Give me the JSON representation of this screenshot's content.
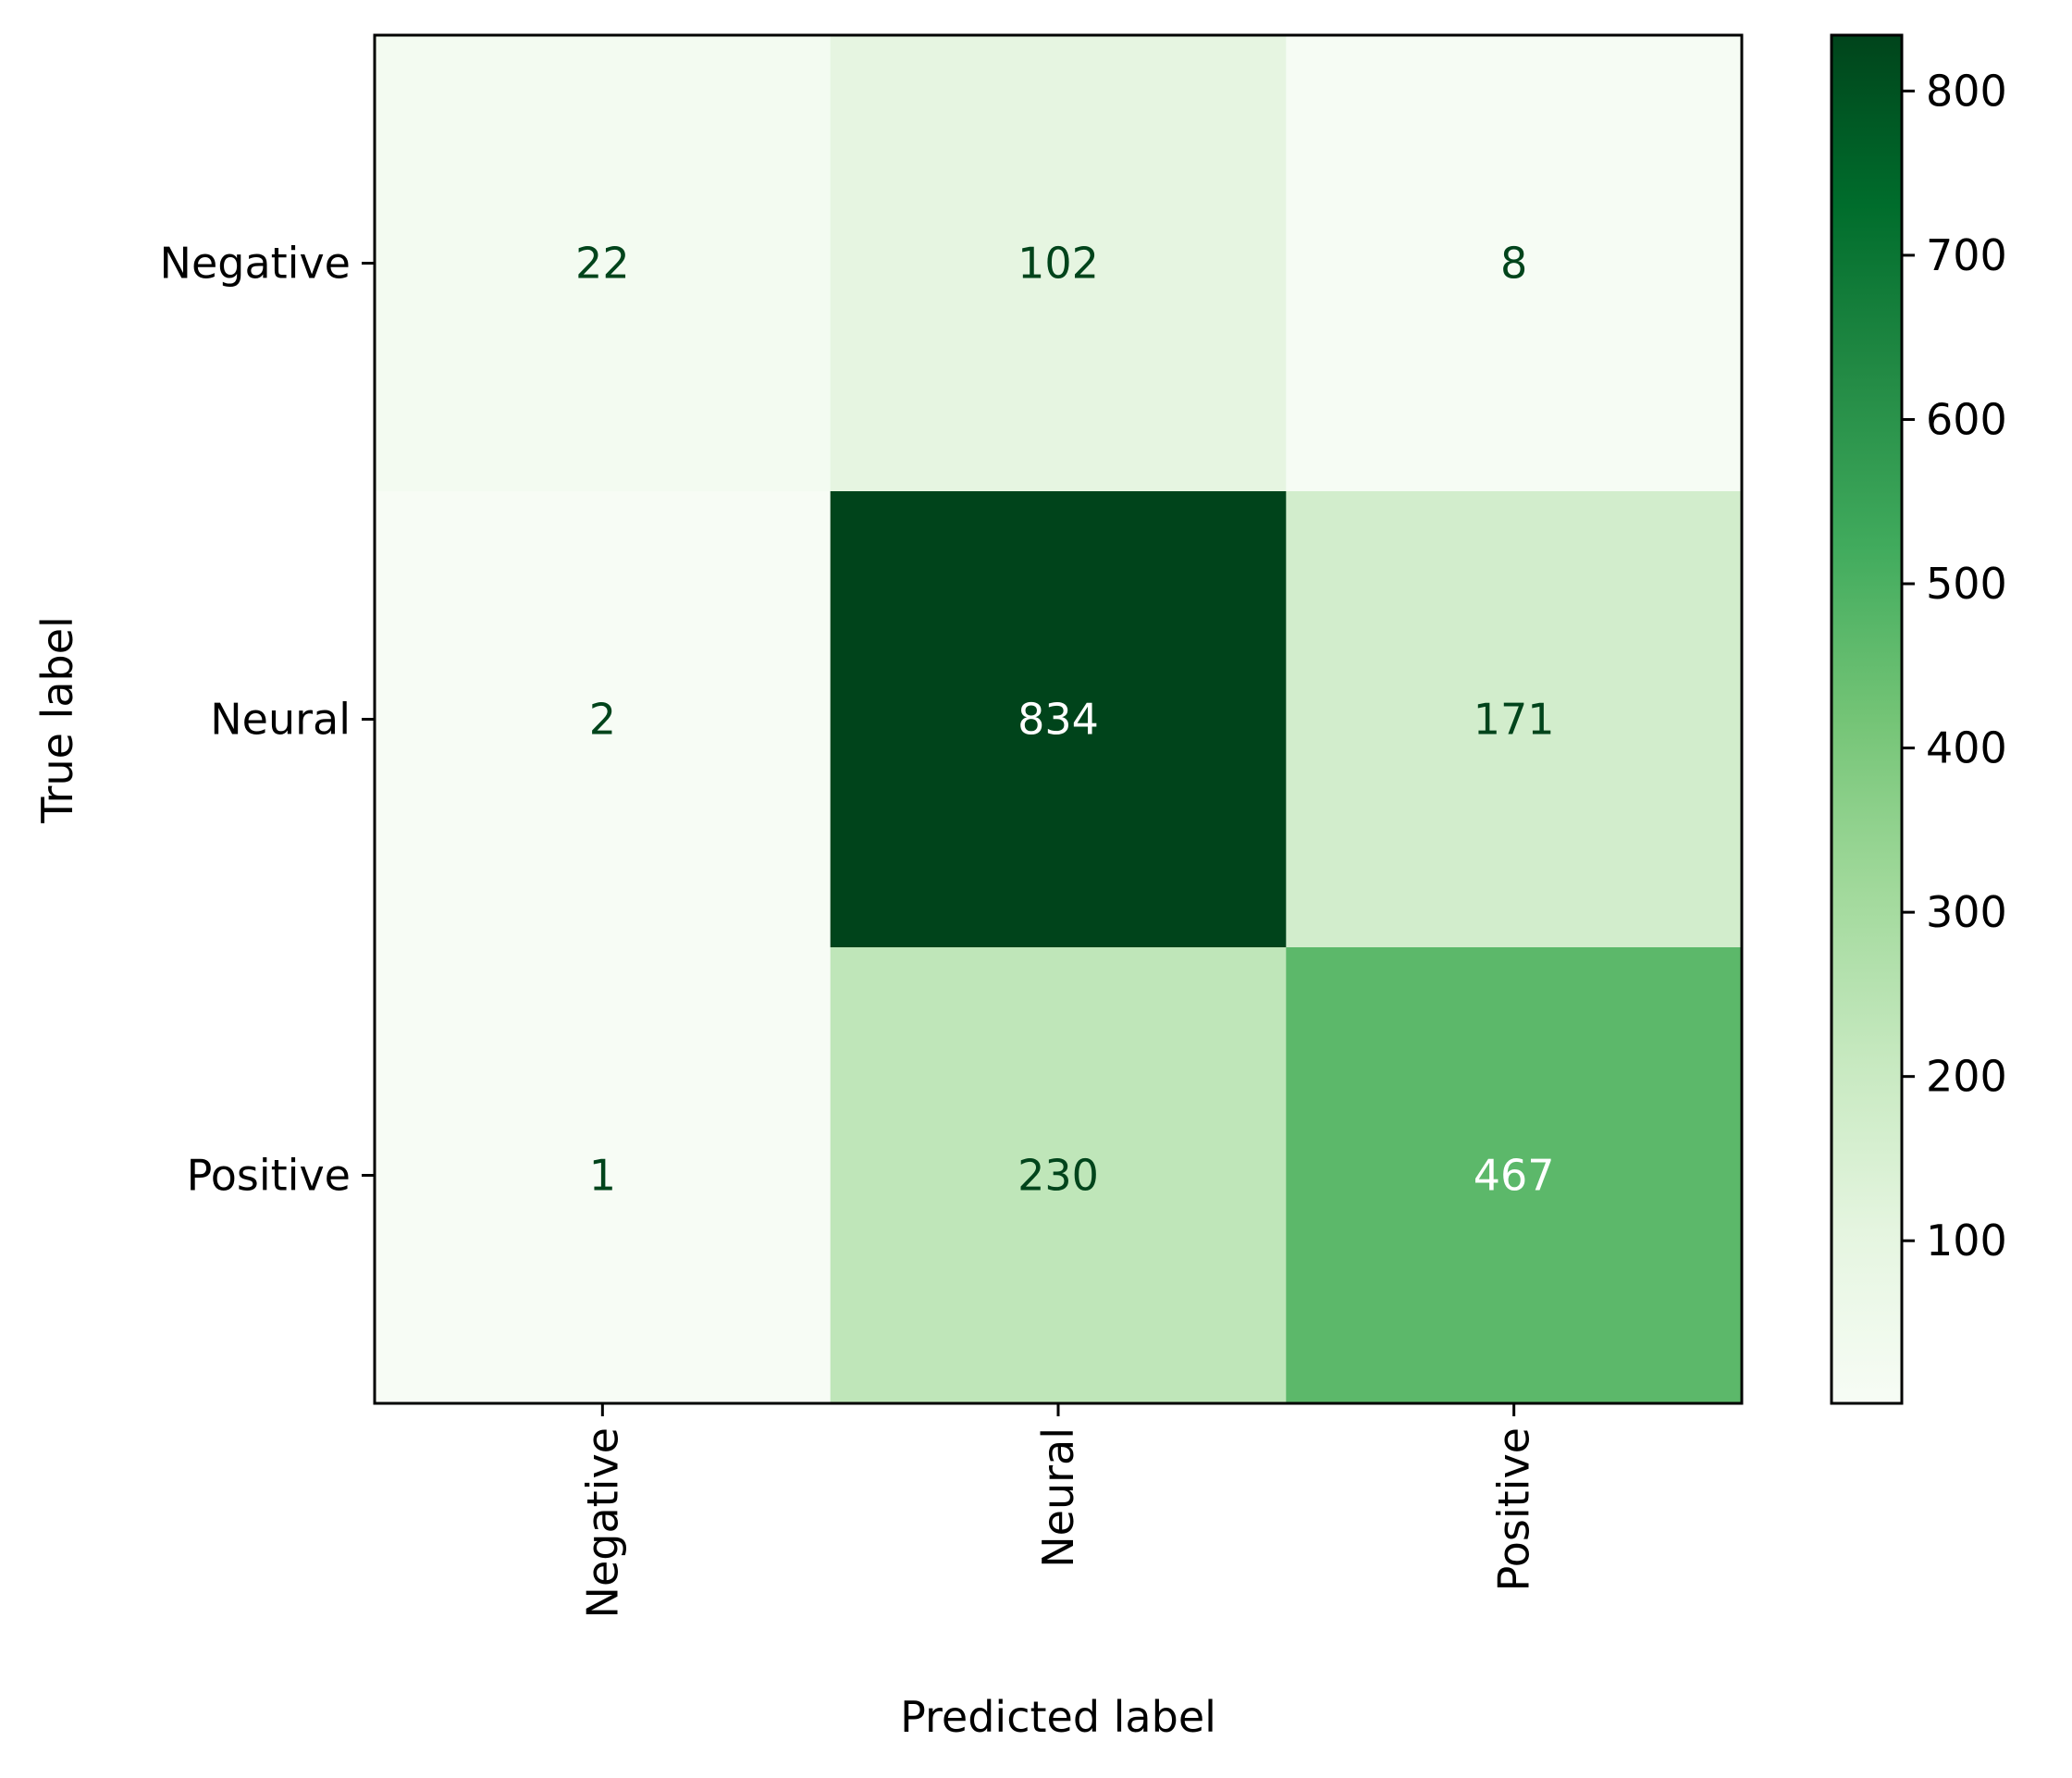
{
  "chart_data": {
    "type": "heatmap",
    "title": "",
    "xlabel": "Predicted label",
    "ylabel": "True label",
    "x_categories": [
      "Negative",
      "Neural",
      "Positive"
    ],
    "y_categories": [
      "Negative",
      "Neural",
      "Positive"
    ],
    "values": [
      [
        22,
        102,
        8
      ],
      [
        2,
        834,
        171
      ],
      [
        1,
        230,
        467
      ]
    ],
    "colormap": "Greens",
    "colorbar": {
      "range": [
        1,
        834
      ],
      "ticks": [
        100,
        200,
        300,
        400,
        500,
        600,
        700,
        800
      ],
      "tick_labels": [
        "100",
        "200",
        "300",
        "400",
        "500",
        "600",
        "700",
        "800"
      ]
    },
    "x_tick_rotation": "vertical",
    "grid": false,
    "legend": "none"
  }
}
